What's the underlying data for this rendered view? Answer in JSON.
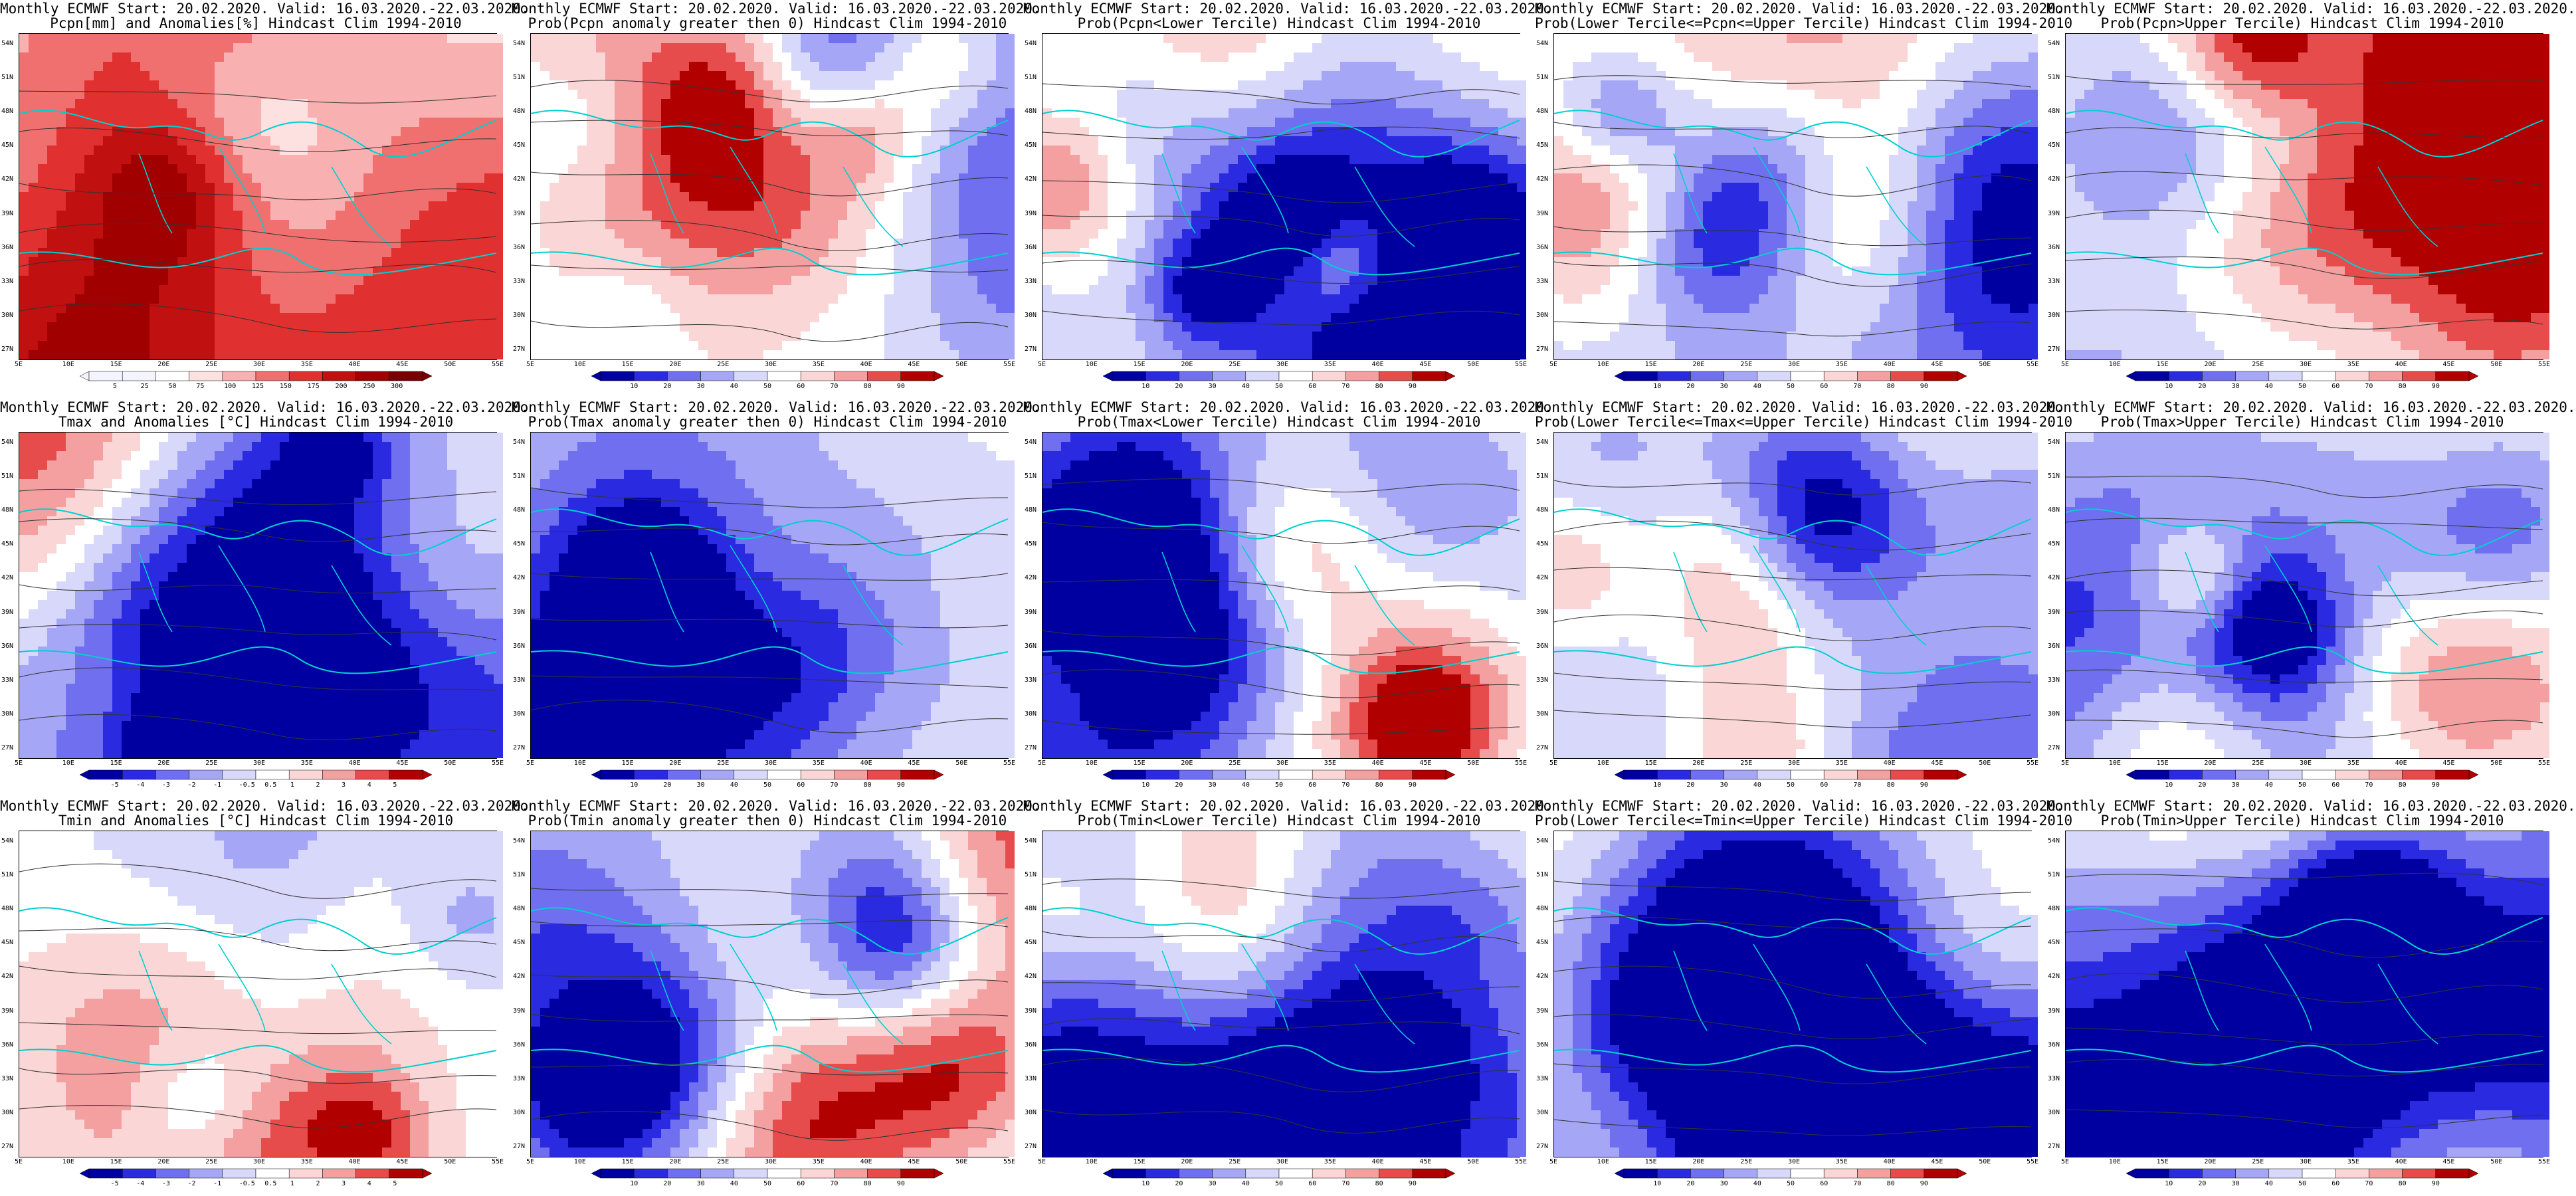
{
  "lat_labels": [
    "54N",
    "51N",
    "48N",
    "45N",
    "42N",
    "39N",
    "36N",
    "33N",
    "30N",
    "27N"
  ],
  "lon_labels": [
    "5E",
    "10E",
    "15E",
    "20E",
    "25E",
    "30E",
    "35E",
    "40E",
    "45E",
    "50E",
    "55E"
  ],
  "colors": {
    "land_line": "#00d0d0",
    "contour": "#333333"
  },
  "palettes": {
    "prob": [
      "#0000a0",
      "#2a2ae0",
      "#6f6ff0",
      "#a6a6f6",
      "#d8d8fb",
      "#ffffff",
      "#fbd6d6",
      "#f4a0a0",
      "#e64c4c",
      "#b00000"
    ],
    "precip": [
      "#f4f4ff",
      "#f4f4ff",
      "#ffffff",
      "#fde0e0",
      "#f9b0b0",
      "#f07070",
      "#e03030",
      "#c01010",
      "#a00000",
      "#7a0000"
    ],
    "temp": [
      "#0000a0",
      "#2a2ae0",
      "#6f6ff0",
      "#a6a6f6",
      "#d8d8fb",
      "#ffffff",
      "#fbd6d6",
      "#f4a0a0",
      "#e64c4c",
      "#b00000"
    ]
  },
  "panels": [
    {
      "line1": "Monthly ECMWF Start: 20.02.2020. Valid: 16.03.2020.-22.03.2020.",
      "line2": "Pcpn[mm] and Anomalies[%] Hindcast Clim 1994-2010",
      "ticks": [
        "5",
        "25",
        "50",
        "75",
        "100",
        "125",
        "150",
        "175",
        "200",
        "250",
        "300"
      ],
      "scheme": "precip",
      "seed": 1,
      "bias": 0.6
    },
    {
      "line1": "Monthly ECMWF Start: 20.02.2020. Valid: 16.03.2020.-22.03.2020.",
      "line2": "Prob(Pcpn anomaly greater then 0) Hindcast Clim 1994-2010",
      "ticks": [
        "10",
        "20",
        "30",
        "40",
        "50",
        "60",
        "70",
        "80",
        "90"
      ],
      "scheme": "prob",
      "seed": 2,
      "bias": -0.35
    },
    {
      "line1": "Monthly ECMWF Start: 20.02.2020. Valid: 16.03.2020.-22.03.2020.",
      "line2": "Prob(Pcpn<Lower Tercile) Hindcast Clim 1994-2010",
      "ticks": [
        "10",
        "20",
        "30",
        "40",
        "50",
        "60",
        "70",
        "80",
        "90"
      ],
      "scheme": "prob",
      "seed": 3,
      "bias": -0.55
    },
    {
      "line1": "Monthly ECMWF Start: 20.02.2020. Valid: 16.03.2020.-22.03.2020.",
      "line2": "Prob(Lower Tercile<=Pcpn<=Upper Tercile) Hindcast Clim 1994-2010",
      "ticks": [
        "10",
        "20",
        "30",
        "40",
        "50",
        "60",
        "70",
        "80",
        "90"
      ],
      "scheme": "prob",
      "seed": 4,
      "bias": -0.3
    },
    {
      "line1": "Monthly ECMWF Start: 20.02.2020. Valid: 16.03.2020.-22.03.2020.",
      "line2": "Prob(Pcpn>Upper Tercile) Hindcast Clim 1994-2010",
      "ticks": [
        "10",
        "20",
        "30",
        "40",
        "50",
        "60",
        "70",
        "80",
        "90"
      ],
      "scheme": "prob",
      "seed": 5,
      "bias": -0.35
    },
    {
      "line1": "Monthly ECMWF Start: 20.02.2020. Valid: 16.03.2020.-22.03.2020.",
      "line2": "Tmax and Anomalies [°C] Hindcast Clim 1994-2010",
      "ticks": [
        "-5",
        "-4",
        "-3",
        "-2",
        "-1",
        "-0.5",
        "0.5",
        "1",
        "2",
        "3",
        "4",
        "5"
      ],
      "scheme": "temp",
      "seed": 6,
      "bias": 0.15
    },
    {
      "line1": "Monthly ECMWF Start: 20.02.2020. Valid: 16.03.2020.-22.03.2020.",
      "line2": "Prob(Tmax anomaly greater then 0) Hindcast Clim 1994-2010",
      "ticks": [
        "10",
        "20",
        "30",
        "40",
        "50",
        "60",
        "70",
        "80",
        "90"
      ],
      "scheme": "prob",
      "seed": 7,
      "bias": 0.15
    },
    {
      "line1": "Monthly ECMWF Start: 20.02.2020. Valid: 16.03.2020.-22.03.2020.",
      "line2": "Prob(Tmax<Lower Tercile) Hindcast Clim 1994-2010",
      "ticks": [
        "10",
        "20",
        "30",
        "40",
        "50",
        "60",
        "70",
        "80",
        "90"
      ],
      "scheme": "prob",
      "seed": 8,
      "bias": -0.5
    },
    {
      "line1": "Monthly ECMWF Start: 20.02.2020. Valid: 16.03.2020.-22.03.2020.",
      "line2": "Prob(Lower Tercile<=Tmax<=Upper Tercile) Hindcast Clim 1994-2010",
      "ticks": [
        "10",
        "20",
        "30",
        "40",
        "50",
        "60",
        "70",
        "80",
        "90"
      ],
      "scheme": "prob",
      "seed": 9,
      "bias": -0.3
    },
    {
      "line1": "Monthly ECMWF Start: 20.02.2020. Valid: 16.03.2020.-22.03.2020.",
      "line2": "Prob(Tmax>Upper Tercile) Hindcast Clim 1994-2010",
      "ticks": [
        "10",
        "20",
        "30",
        "40",
        "50",
        "60",
        "70",
        "80",
        "90"
      ],
      "scheme": "prob",
      "seed": 10,
      "bias": -0.45
    },
    {
      "line1": "Monthly ECMWF Start: 20.02.2020. Valid: 16.03.2020.-22.03.2020.",
      "line2": "Tmin and Anomalies [°C] Hindcast Clim 1994-2010",
      "ticks": [
        "-5",
        "-4",
        "-3",
        "-2",
        "-1",
        "-0.5",
        "0.5",
        "1",
        "2",
        "3",
        "4",
        "5"
      ],
      "scheme": "temp",
      "seed": 11,
      "bias": 0.1
    },
    {
      "line1": "Monthly ECMWF Start: 20.02.2020. Valid: 16.03.2020.-22.03.2020.",
      "line2": "Prob(Tmin anomaly greater then 0) Hindcast Clim 1994-2010",
      "ticks": [
        "10",
        "20",
        "30",
        "40",
        "50",
        "60",
        "70",
        "80",
        "90"
      ],
      "scheme": "prob",
      "seed": 12,
      "bias": 0.1
    },
    {
      "line1": "Monthly ECMWF Start: 20.02.2020. Valid: 16.03.2020.-22.03.2020.",
      "line2": "Prob(Tmin<Lower Tercile) Hindcast Clim 1994-2010",
      "ticks": [
        "10",
        "20",
        "30",
        "40",
        "50",
        "60",
        "70",
        "80",
        "90"
      ],
      "scheme": "prob",
      "seed": 13,
      "bias": -0.45
    },
    {
      "line1": "Monthly ECMWF Start: 20.02.2020. Valid: 16.03.2020.-22.03.2020.",
      "line2": "Prob(Lower Tercile<=Tmin<=Upper Tercile) Hindcast Clim 1994-2010",
      "ticks": [
        "10",
        "20",
        "30",
        "40",
        "50",
        "60",
        "70",
        "80",
        "90"
      ],
      "scheme": "prob",
      "seed": 14,
      "bias": -0.4
    },
    {
      "line1": "Monthly ECMWF Start: 20.02.2020. Valid: 16.03.2020.-22.03.2020.",
      "line2": "Prob(Tmin>Upper Tercile) Hindcast Clim 1994-2010",
      "ticks": [
        "10",
        "20",
        "30",
        "40",
        "50",
        "60",
        "70",
        "80",
        "90"
      ],
      "scheme": "prob",
      "seed": 15,
      "bias": -0.45
    }
  ]
}
